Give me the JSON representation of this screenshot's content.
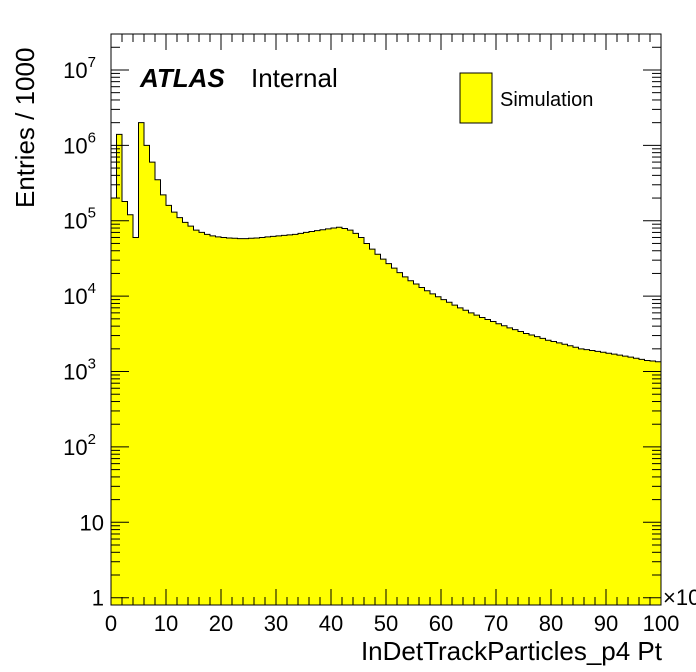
{
  "chart_data": {
    "type": "bar",
    "histogram": true,
    "title": "",
    "xlabel": "InDetTrackParticles_p4 Pt",
    "ylabel": "Entries / 1000",
    "x_multiplier_label": "×10",
    "xlim": [
      0,
      100
    ],
    "ylim": [
      0.8,
      30000000
    ],
    "log_y": true,
    "grid": false,
    "legend_position": "top-right",
    "experiment_label": "ATLAS",
    "status_label": "Internal",
    "x_tick_labels": [
      "0",
      "10",
      "20",
      "30",
      "40",
      "50",
      "60",
      "70",
      "80",
      "90",
      "100"
    ],
    "y_tick_labels": [
      {
        "base": "1",
        "exp": ""
      },
      {
        "base": "10",
        "exp": ""
      },
      {
        "base": "10",
        "exp": "2"
      },
      {
        "base": "10",
        "exp": "3"
      },
      {
        "base": "10",
        "exp": "4"
      },
      {
        "base": "10",
        "exp": "5"
      },
      {
        "base": "10",
        "exp": "6"
      },
      {
        "base": "10",
        "exp": "7"
      }
    ],
    "bin_width": 1,
    "x_start": 0,
    "fill_color": "#ffff00",
    "line_color": "#000000",
    "series": [
      {
        "name": "Simulation",
        "values": [
          200000,
          1400000,
          180000,
          120000,
          60000,
          2000000,
          1000000,
          600000,
          350000,
          220000,
          160000,
          130000,
          110000,
          95000,
          85000,
          75000,
          70000,
          66000,
          63000,
          61000,
          60000,
          59000,
          58500,
          58000,
          58000,
          58500,
          59000,
          60000,
          61000,
          62000,
          63000,
          64000,
          65000,
          66000,
          68000,
          70000,
          72000,
          74000,
          76000,
          78000,
          80000,
          82000,
          79000,
          75000,
          68000,
          60000,
          50000,
          42000,
          36000,
          31000,
          27000,
          23500,
          20500,
          18000,
          16000,
          14500,
          13000,
          11800,
          10700,
          9800,
          9000,
          8300,
          7600,
          7000,
          6500,
          6000,
          5600,
          5200,
          4900,
          4600,
          4300,
          4050,
          3800,
          3600,
          3400,
          3200,
          3050,
          2900,
          2750,
          2600,
          2500,
          2400,
          2300,
          2200,
          2100,
          2000,
          1950,
          1900,
          1850,
          1800,
          1750,
          1700,
          1650,
          1600,
          1550,
          1500,
          1450,
          1400,
          1380,
          1350
        ]
      }
    ]
  }
}
